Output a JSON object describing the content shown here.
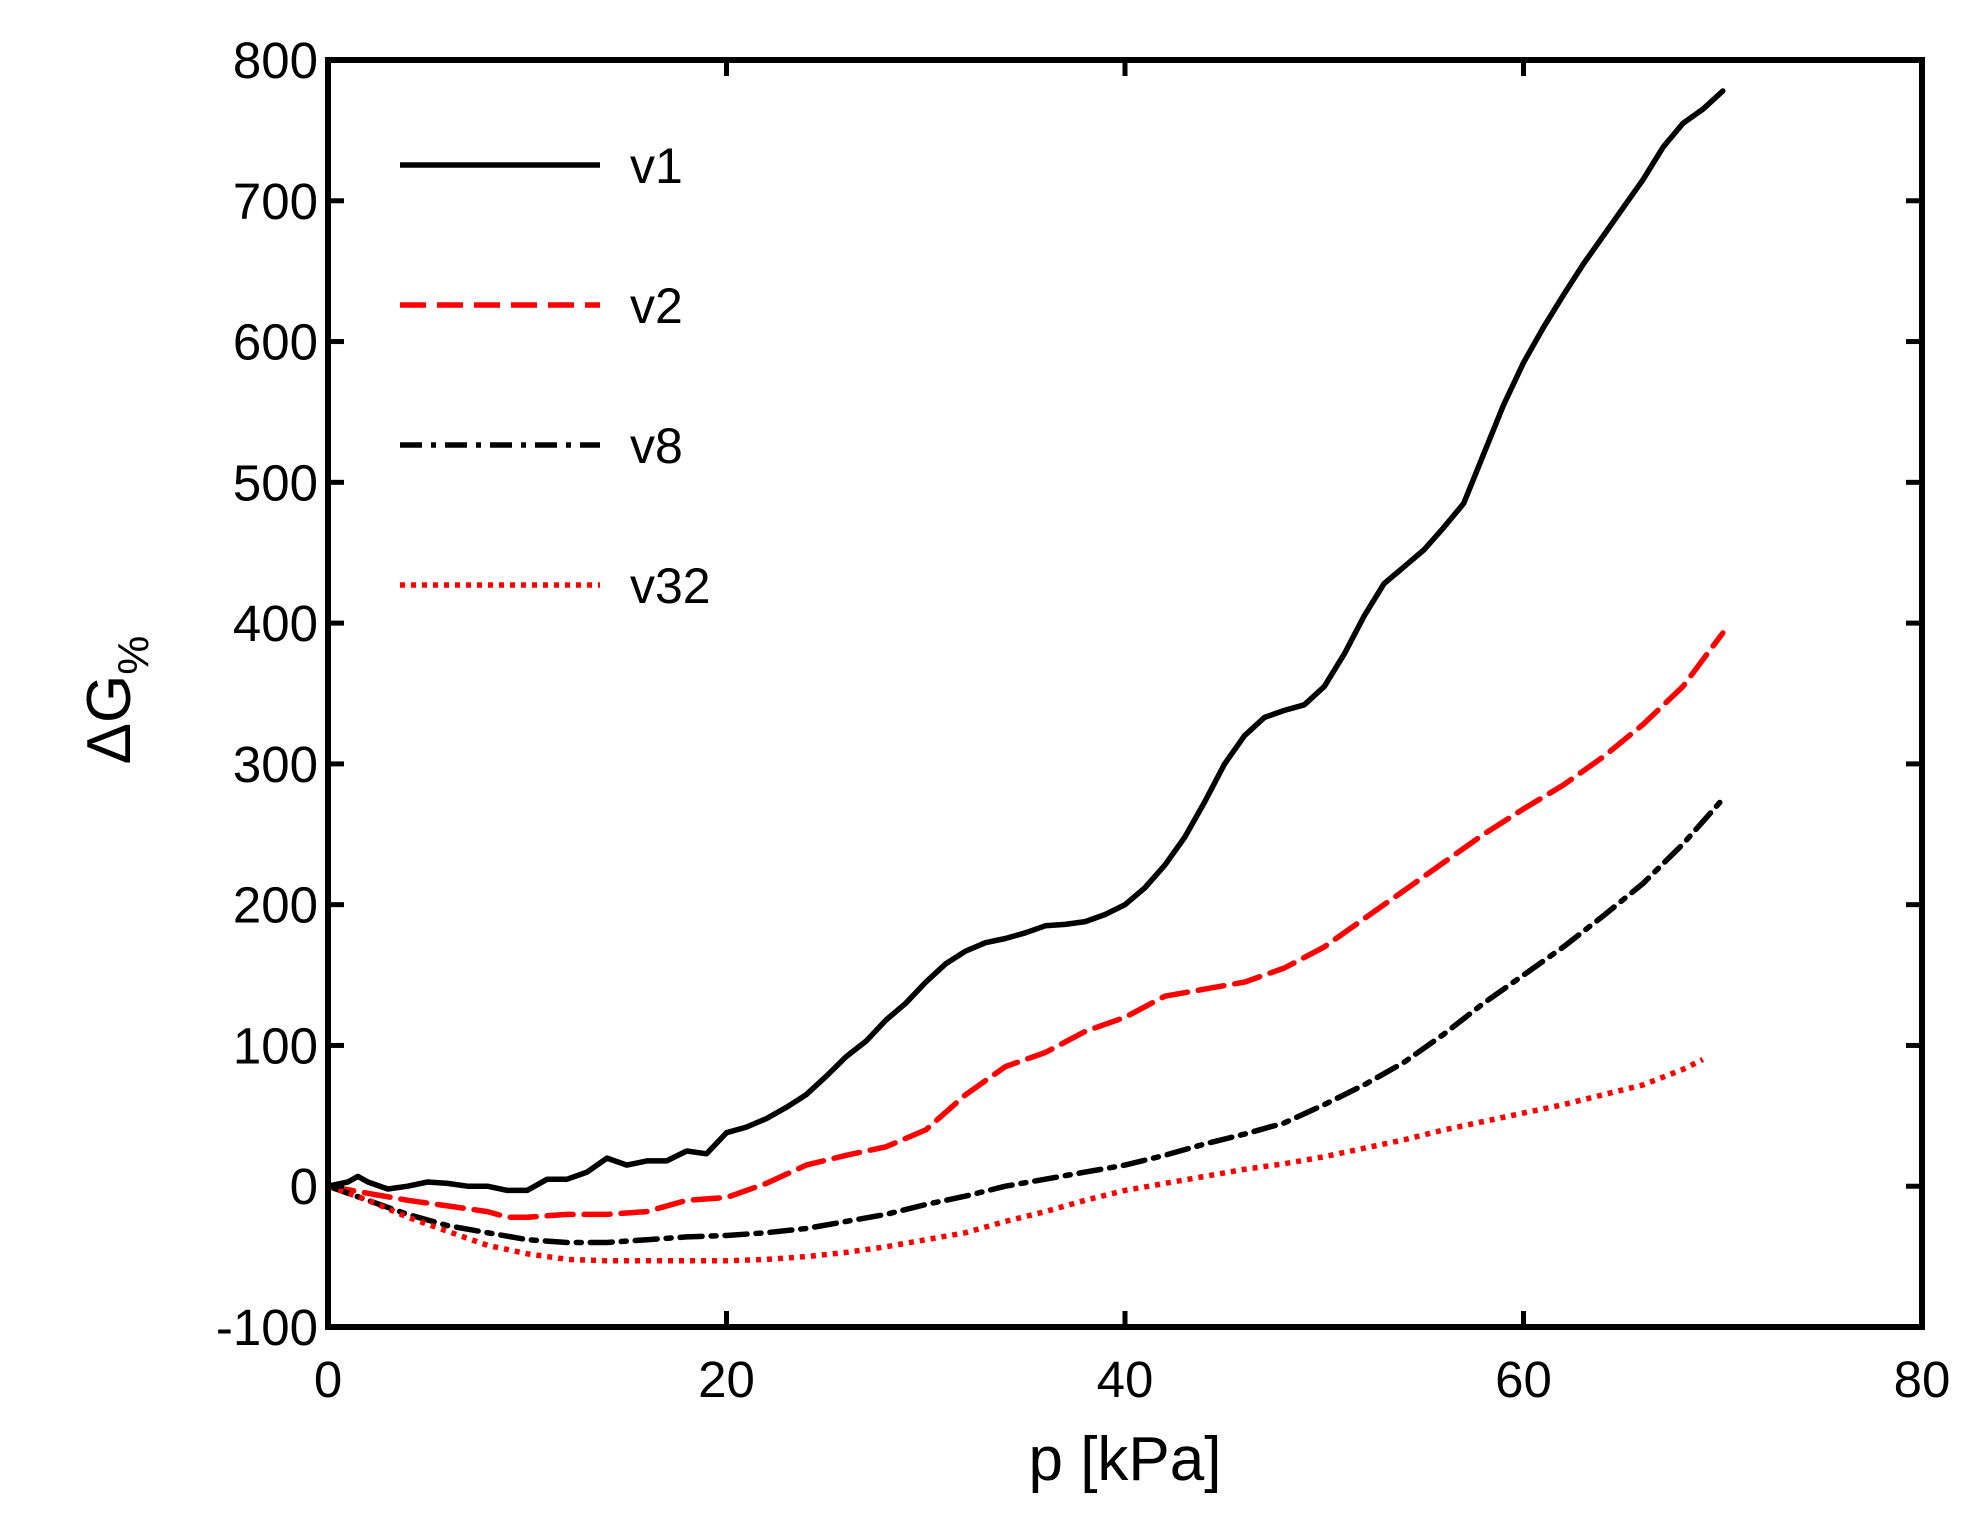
{
  "chart_data": {
    "type": "line",
    "title": "",
    "xlabel": "p [kPa]",
    "ylabel_main": "ΔG",
    "ylabel_sub": "%",
    "xlim": [
      0,
      80
    ],
    "ylim": [
      -100,
      800
    ],
    "xticks": [
      0,
      20,
      40,
      60,
      80
    ],
    "yticks": [
      -100,
      0,
      100,
      200,
      300,
      400,
      500,
      600,
      700,
      800
    ],
    "grid": false,
    "legend_position": "top-left",
    "series": [
      {
        "name": "v1",
        "color": "#000000",
        "style": "solid",
        "x": [
          0,
          1,
          1.5,
          2,
          3,
          4,
          5,
          6,
          7,
          8,
          9,
          10,
          11,
          12,
          13,
          14,
          15,
          16,
          17,
          18,
          19,
          20,
          21,
          22,
          23,
          24,
          25,
          26,
          27,
          28,
          29,
          30,
          31,
          32,
          33,
          34,
          35,
          36,
          37,
          38,
          39,
          40,
          41,
          42,
          43,
          44,
          45,
          46,
          47,
          48,
          49,
          50,
          51,
          52,
          53,
          54,
          55,
          56,
          57,
          58,
          59,
          60,
          61,
          62,
          63,
          64,
          65,
          66,
          67,
          68,
          69,
          70
        ],
        "y": [
          0,
          3,
          7,
          3,
          -2,
          0,
          3,
          2,
          0,
          0,
          -3,
          -3,
          5,
          5,
          10,
          20,
          15,
          18,
          18,
          25,
          23,
          38,
          42,
          48,
          56,
          65,
          78,
          92,
          103,
          118,
          130,
          145,
          158,
          167,
          173,
          176,
          180,
          185,
          186,
          188,
          193,
          200,
          212,
          228,
          248,
          273,
          300,
          320,
          333,
          338,
          342,
          355,
          378,
          405,
          428,
          440,
          452,
          468,
          485,
          520,
          555,
          585,
          610,
          633,
          655,
          675,
          695,
          715,
          738,
          755,
          765,
          778
        ]
      },
      {
        "name": "v2",
        "color": "#ff0000",
        "style": "dashed",
        "x": [
          0,
          2,
          4,
          6,
          8,
          9,
          10,
          12,
          14,
          16,
          18,
          20,
          22,
          24,
          26,
          28,
          30,
          32,
          34,
          36,
          38,
          40,
          42,
          44,
          46,
          48,
          50,
          52,
          54,
          56,
          58,
          60,
          62,
          64,
          66,
          68,
          70
        ],
        "y": [
          0,
          -5,
          -10,
          -14,
          -18,
          -22,
          -22,
          -20,
          -20,
          -18,
          -10,
          -8,
          2,
          15,
          22,
          28,
          40,
          65,
          85,
          95,
          110,
          120,
          135,
          140,
          145,
          155,
          170,
          190,
          210,
          230,
          250,
          268,
          285,
          305,
          328,
          355,
          393
        ]
      },
      {
        "name": "v8",
        "color": "#000000",
        "style": "dashdot",
        "x": [
          0,
          2,
          4,
          6,
          8,
          10,
          12,
          14,
          16,
          18,
          20,
          22,
          24,
          26,
          28,
          30,
          32,
          34,
          36,
          38,
          40,
          42,
          44,
          46,
          48,
          50,
          52,
          54,
          56,
          58,
          60,
          62,
          64,
          66,
          68,
          70
        ],
        "y": [
          0,
          -10,
          -20,
          -28,
          -33,
          -38,
          -40,
          -40,
          -38,
          -36,
          -35,
          -33,
          -30,
          -25,
          -20,
          -13,
          -7,
          0,
          5,
          10,
          15,
          22,
          30,
          37,
          45,
          58,
          72,
          88,
          108,
          130,
          150,
          170,
          192,
          215,
          243,
          275
        ]
      },
      {
        "name": "v32",
        "color": "#ff0000",
        "style": "dotted",
        "x": [
          0,
          2,
          4,
          6,
          8,
          10,
          12,
          14,
          16,
          18,
          20,
          22,
          24,
          26,
          28,
          30,
          32,
          34,
          36,
          38,
          40,
          42,
          44,
          46,
          48,
          50,
          52,
          54,
          56,
          58,
          60,
          62,
          64,
          66,
          68,
          69
        ],
        "y": [
          0,
          -10,
          -22,
          -32,
          -42,
          -48,
          -52,
          -53,
          -53,
          -53,
          -53,
          -52,
          -50,
          -47,
          -43,
          -38,
          -33,
          -25,
          -18,
          -10,
          -3,
          2,
          7,
          12,
          16,
          21,
          27,
          33,
          40,
          46,
          52,
          58,
          65,
          72,
          83,
          90
        ]
      }
    ]
  }
}
